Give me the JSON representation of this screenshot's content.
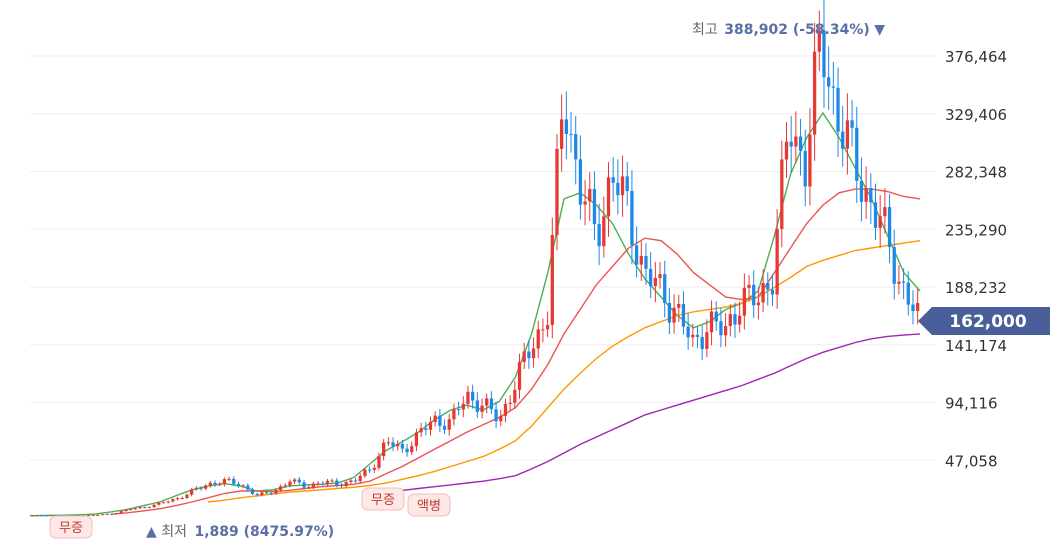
{
  "chart_data": {
    "type": "candlestick",
    "title": "",
    "y_ticks": [
      47058,
      94116,
      141174,
      188232,
      235290,
      282348,
      329406,
      376464
    ],
    "ylim": [
      0,
      395000
    ],
    "grid": true,
    "colors": {
      "up": "#e53935",
      "down": "#1e88e5",
      "ma5": "#4caf50",
      "ma20": "#ef5350",
      "ma60": "#ff9800",
      "ma120": "#9c27b0",
      "price_tag": "#4a5f9a",
      "annotation": "#5a6fa8"
    },
    "high_label": {
      "prefix": "최고",
      "value": "388,902 (-58.34%)",
      "marker": "▼"
    },
    "low_label": {
      "marker": "▲",
      "prefix": "최저",
      "value": "1,889 (8475.97%)"
    },
    "current_price": {
      "label": "162,000"
    },
    "event_badges": [
      {
        "text": "무증"
      },
      {
        "text": "무증"
      },
      {
        "text": "액병"
      }
    ],
    "ohlc_anchor_closes": [
      2000,
      2500,
      1900,
      2200,
      2600,
      3500,
      7000,
      9000,
      12000,
      16000,
      22000,
      28000,
      30000,
      27000,
      18000,
      22000,
      30000,
      26000,
      29000,
      28000,
      30000,
      40000,
      62000,
      55000,
      68000,
      80000,
      78000,
      100000,
      92000,
      80000,
      110000,
      140000,
      165000,
      350000,
      270000,
      230000,
      280000,
      250000,
      200000,
      185000,
      170000,
      140000,
      160000,
      150000,
      180000,
      175000,
      200000,
      320000,
      290000,
      388000,
      330000,
      290000,
      260000,
      230000,
      190000,
      162000
    ],
    "ma_series": [
      {
        "key": "ma5",
        "values": [
          1900,
          2000,
          2300,
          2600,
          3200,
          5000,
          7000,
          10000,
          13000,
          18000,
          23000,
          26000,
          28000,
          26000,
          22000,
          23000,
          26000,
          27000,
          27500,
          28500,
          33000,
          44000,
          55000,
          62000,
          70000,
          80000,
          88000,
          92000,
          88000,
          95000,
          115000,
          150000,
          200000,
          260000,
          265000,
          255000,
          240000,
          215000,
          195000,
          180000,
          165000,
          155000,
          160000,
          170000,
          175000,
          185000,
          230000,
          280000,
          310000,
          330000,
          310000,
          285000,
          260000,
          230000,
          200000,
          185000
        ]
      },
      {
        "key": "ma20",
        "values": [
          null,
          null,
          null,
          null,
          null,
          3000,
          4200,
          5800,
          7500,
          10000,
          13000,
          16500,
          20000,
          22000,
          22000,
          21500,
          22500,
          24000,
          25500,
          26500,
          27500,
          30000,
          36000,
          42000,
          49000,
          56000,
          63000,
          70000,
          76000,
          82000,
          90000,
          105000,
          125000,
          150000,
          170000,
          190000,
          205000,
          220000,
          228000,
          226000,
          215000,
          200000,
          190000,
          180000,
          178000,
          180000,
          200000,
          220000,
          240000,
          255000,
          265000,
          268000,
          268000,
          266000,
          262000,
          260000
        ]
      },
      {
        "key": "ma60",
        "values": [
          null,
          null,
          null,
          null,
          null,
          null,
          null,
          null,
          null,
          null,
          null,
          13000,
          14500,
          16500,
          18000,
          19500,
          21000,
          22000,
          23000,
          24000,
          25000,
          26500,
          28500,
          31500,
          34500,
          38000,
          42000,
          46000,
          50000,
          56000,
          63000,
          75000,
          90000,
          105000,
          118000,
          130000,
          140000,
          148000,
          155000,
          160000,
          165000,
          168000,
          170000,
          172000,
          175000,
          180000,
          188000,
          196000,
          205000,
          210000,
          214000,
          218000,
          220000,
          222000,
          224000,
          226000
        ]
      },
      {
        "key": "ma120",
        "values": [
          null,
          null,
          null,
          null,
          null,
          null,
          null,
          null,
          null,
          null,
          null,
          null,
          null,
          null,
          null,
          null,
          null,
          null,
          null,
          null,
          null,
          20000,
          21000,
          22500,
          24000,
          25500,
          27000,
          28500,
          30000,
          32000,
          34500,
          40000,
          46000,
          53000,
          60000,
          66000,
          72000,
          78000,
          84000,
          88000,
          92000,
          96000,
          100000,
          104000,
          108000,
          113000,
          118000,
          124000,
          130000,
          135000,
          139000,
          143000,
          146000,
          148000,
          149000,
          150000
        ]
      }
    ]
  }
}
